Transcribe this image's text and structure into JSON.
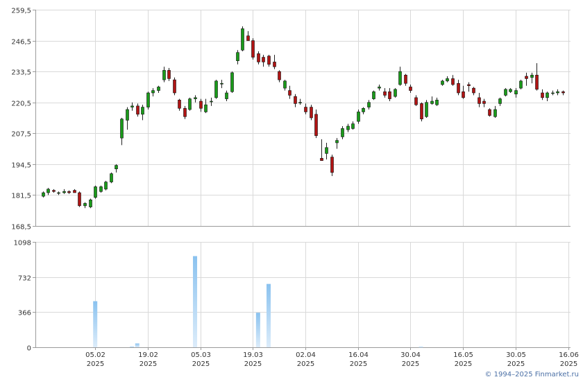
{
  "chart_data": [
    {
      "type": "candlestick",
      "ylim": [
        168.5,
        259.5
      ],
      "yticks": [
        "168,5",
        "181,5",
        "194,5",
        "207,5",
        "220,5",
        "233,5",
        "246,5",
        "259,5"
      ],
      "ytick_values": [
        168.5,
        181.5,
        194.5,
        207.5,
        220.5,
        233.5,
        246.5,
        259.5
      ],
      "grid": true,
      "colors": {
        "up": "#1a9a1a",
        "down": "#b01414",
        "wick": "#222222"
      },
      "candles": [
        [
          181.0,
          183.0,
          180.5,
          182.5
        ],
        [
          182.5,
          184.5,
          181.5,
          184.0
        ],
        [
          183.5,
          184.0,
          182.5,
          183.0
        ],
        [
          182.5,
          183.0,
          181.5,
          182.5
        ],
        [
          182.5,
          184.0,
          182.0,
          183.0
        ],
        [
          183.0,
          183.5,
          182.0,
          182.5
        ],
        [
          183.5,
          184.0,
          182.5,
          182.5
        ],
        [
          182.5,
          183.0,
          176.5,
          177.0
        ],
        [
          177.0,
          178.5,
          176.0,
          178.0
        ],
        [
          176.5,
          180.0,
          176.0,
          179.5
        ],
        [
          180.5,
          185.5,
          180.0,
          185.0
        ],
        [
          183.0,
          185.5,
          182.5,
          185.0
        ],
        [
          184.0,
          187.5,
          183.5,
          187.0
        ],
        [
          187.0,
          191.0,
          186.5,
          190.5
        ],
        [
          192.5,
          194.5,
          191.0,
          194.0
        ],
        [
          205.5,
          214.0,
          202.5,
          213.5
        ],
        [
          213.0,
          218.5,
          209.0,
          217.5
        ],
        [
          218.5,
          220.5,
          217.0,
          219.0
        ],
        [
          219.0,
          220.0,
          214.5,
          215.5
        ],
        [
          215.5,
          219.5,
          213.0,
          218.5
        ],
        [
          218.5,
          225.0,
          217.5,
          224.5
        ],
        [
          224.5,
          226.5,
          223.0,
          225.5
        ],
        [
          225.5,
          227.5,
          224.5,
          227.0
        ],
        [
          230.0,
          235.5,
          229.0,
          234.0
        ],
        [
          234.0,
          235.0,
          229.5,
          230.5
        ],
        [
          230.0,
          231.0,
          223.5,
          224.5
        ],
        [
          221.5,
          222.0,
          217.0,
          218.0
        ],
        [
          218.0,
          219.0,
          213.5,
          214.5
        ],
        [
          217.5,
          222.5,
          217.0,
          222.0
        ],
        [
          222.0,
          223.5,
          220.5,
          222.5
        ],
        [
          221.0,
          222.0,
          216.5,
          218.0
        ],
        [
          216.5,
          222.0,
          216.0,
          219.5
        ],
        [
          221.0,
          222.5,
          219.0,
          221.0
        ],
        [
          222.5,
          230.0,
          222.0,
          229.5
        ],
        [
          228.5,
          230.0,
          226.5,
          228.5
        ],
        [
          222.0,
          225.5,
          221.0,
          224.5
        ],
        [
          225.0,
          233.5,
          224.5,
          233.0
        ],
        [
          238.0,
          242.5,
          236.5,
          241.5
        ],
        [
          242.5,
          252.5,
          242.0,
          251.5
        ],
        [
          248.5,
          250.5,
          246.5,
          246.5
        ],
        [
          246.5,
          247.5,
          238.5,
          239.5
        ],
        [
          241.0,
          242.0,
          236.5,
          237.5
        ],
        [
          239.5,
          240.5,
          235.5,
          237.5
        ],
        [
          240.0,
          240.5,
          235.5,
          236.5
        ],
        [
          237.5,
          240.5,
          234.5,
          235.5
        ],
        [
          233.5,
          234.0,
          229.0,
          230.0
        ],
        [
          226.5,
          230.0,
          225.5,
          229.5
        ],
        [
          225.5,
          227.5,
          222.0,
          223.5
        ],
        [
          223.0,
          224.0,
          218.5,
          220.0
        ],
        [
          220.5,
          222.0,
          219.5,
          220.5
        ],
        [
          218.5,
          220.0,
          215.5,
          216.5
        ],
        [
          218.5,
          219.5,
          213.0,
          214.0
        ],
        [
          215.5,
          217.5,
          205.5,
          206.5
        ],
        [
          197.0,
          205.0,
          196.0,
          196.0
        ],
        [
          199.0,
          203.5,
          196.5,
          201.5
        ],
        [
          197.5,
          198.5,
          189.5,
          191.0
        ],
        [
          203.5,
          205.5,
          201.0,
          204.5
        ],
        [
          206.0,
          210.5,
          205.0,
          209.5
        ],
        [
          209.0,
          211.5,
          208.0,
          210.5
        ],
        [
          209.5,
          212.5,
          209.0,
          211.5
        ],
        [
          212.5,
          217.5,
          211.5,
          216.5
        ],
        [
          216.5,
          218.5,
          215.5,
          218.0
        ],
        [
          218.5,
          221.5,
          217.5,
          220.5
        ],
        [
          222.0,
          225.5,
          221.5,
          225.0
        ],
        [
          226.5,
          228.0,
          225.5,
          227.0
        ],
        [
          225.0,
          226.5,
          222.5,
          223.5
        ],
        [
          225.0,
          226.5,
          221.0,
          222.0
        ],
        [
          223.0,
          226.5,
          222.5,
          226.0
        ],
        [
          228.0,
          235.5,
          227.5,
          233.5
        ],
        [
          232.0,
          232.5,
          227.5,
          228.5
        ],
        [
          227.0,
          228.0,
          224.5,
          225.5
        ],
        [
          222.5,
          223.5,
          219.0,
          219.5
        ],
        [
          220.0,
          220.5,
          212.5,
          213.5
        ],
        [
          214.5,
          221.5,
          214.0,
          220.5
        ],
        [
          220.0,
          223.0,
          219.5,
          221.0
        ],
        [
          219.5,
          222.5,
          219.0,
          221.5
        ],
        [
          228.0,
          230.0,
          227.5,
          229.5
        ],
        [
          229.5,
          231.5,
          229.0,
          230.5
        ],
        [
          230.5,
          232.0,
          227.5,
          228.0
        ],
        [
          228.5,
          230.0,
          223.5,
          224.5
        ],
        [
          225.0,
          227.5,
          222.0,
          222.5
        ],
        [
          228.0,
          229.0,
          225.0,
          227.5
        ],
        [
          226.5,
          227.0,
          223.5,
          224.5
        ],
        [
          222.5,
          224.5,
          218.5,
          220.0
        ],
        [
          221.0,
          222.0,
          218.5,
          220.0
        ],
        [
          217.5,
          218.0,
          214.5,
          215.0
        ],
        [
          214.5,
          219.0,
          214.0,
          217.5
        ],
        [
          220.0,
          222.5,
          219.0,
          222.0
        ],
        [
          223.5,
          226.5,
          223.0,
          226.0
        ],
        [
          225.0,
          226.5,
          224.5,
          226.0
        ],
        [
          224.0,
          226.5,
          222.5,
          225.5
        ],
        [
          226.5,
          230.0,
          226.0,
          229.5
        ],
        [
          231.5,
          233.0,
          227.5,
          230.5
        ],
        [
          231.0,
          233.0,
          228.5,
          232.0
        ],
        [
          232.0,
          237.0,
          225.5,
          226.0
        ],
        [
          224.5,
          226.0,
          221.5,
          222.5
        ],
        [
          222.5,
          225.0,
          221.0,
          224.5
        ],
        [
          224.5,
          225.5,
          223.5,
          224.5
        ],
        [
          224.5,
          226.0,
          223.5,
          225.0
        ],
        [
          225.0,
          225.5,
          223.5,
          224.5
        ]
      ]
    },
    {
      "type": "bar",
      "ylim": [
        0,
        1098
      ],
      "yticks": [
        "0",
        "366",
        "732",
        "1098"
      ],
      "ytick_values": [
        0,
        366,
        732,
        1098
      ],
      "grid": true,
      "bar_color": "#8ac2ef",
      "bars": [
        {
          "index": 10,
          "value": 480
        },
        {
          "index": 17,
          "value": 8
        },
        {
          "index": 18,
          "value": 40
        },
        {
          "index": 29,
          "value": 950
        },
        {
          "index": 41,
          "value": 360
        },
        {
          "index": 43,
          "value": 660
        },
        {
          "index": 72,
          "value": 5
        }
      ],
      "xticks": [
        {
          "index": 10,
          "date": "05.02",
          "year": "2025"
        },
        {
          "index": 20,
          "date": "19.02",
          "year": "2025"
        },
        {
          "index": 30,
          "date": "05.03",
          "year": "2025"
        },
        {
          "index": 40,
          "date": "19.03",
          "year": "2025"
        },
        {
          "index": 50,
          "date": "02.04",
          "year": "2025"
        },
        {
          "index": 60,
          "date": "16.04",
          "year": "2025"
        },
        {
          "index": 70,
          "date": "30.04",
          "year": "2025"
        },
        {
          "index": 80,
          "date": "16.05",
          "year": "2025"
        },
        {
          "index": 90,
          "date": "30.05",
          "year": "2025"
        },
        {
          "index": 100,
          "date": "16.06",
          "year": "2025"
        }
      ]
    }
  ],
  "copyright": "© 1994–2025 Finmarket.ru"
}
